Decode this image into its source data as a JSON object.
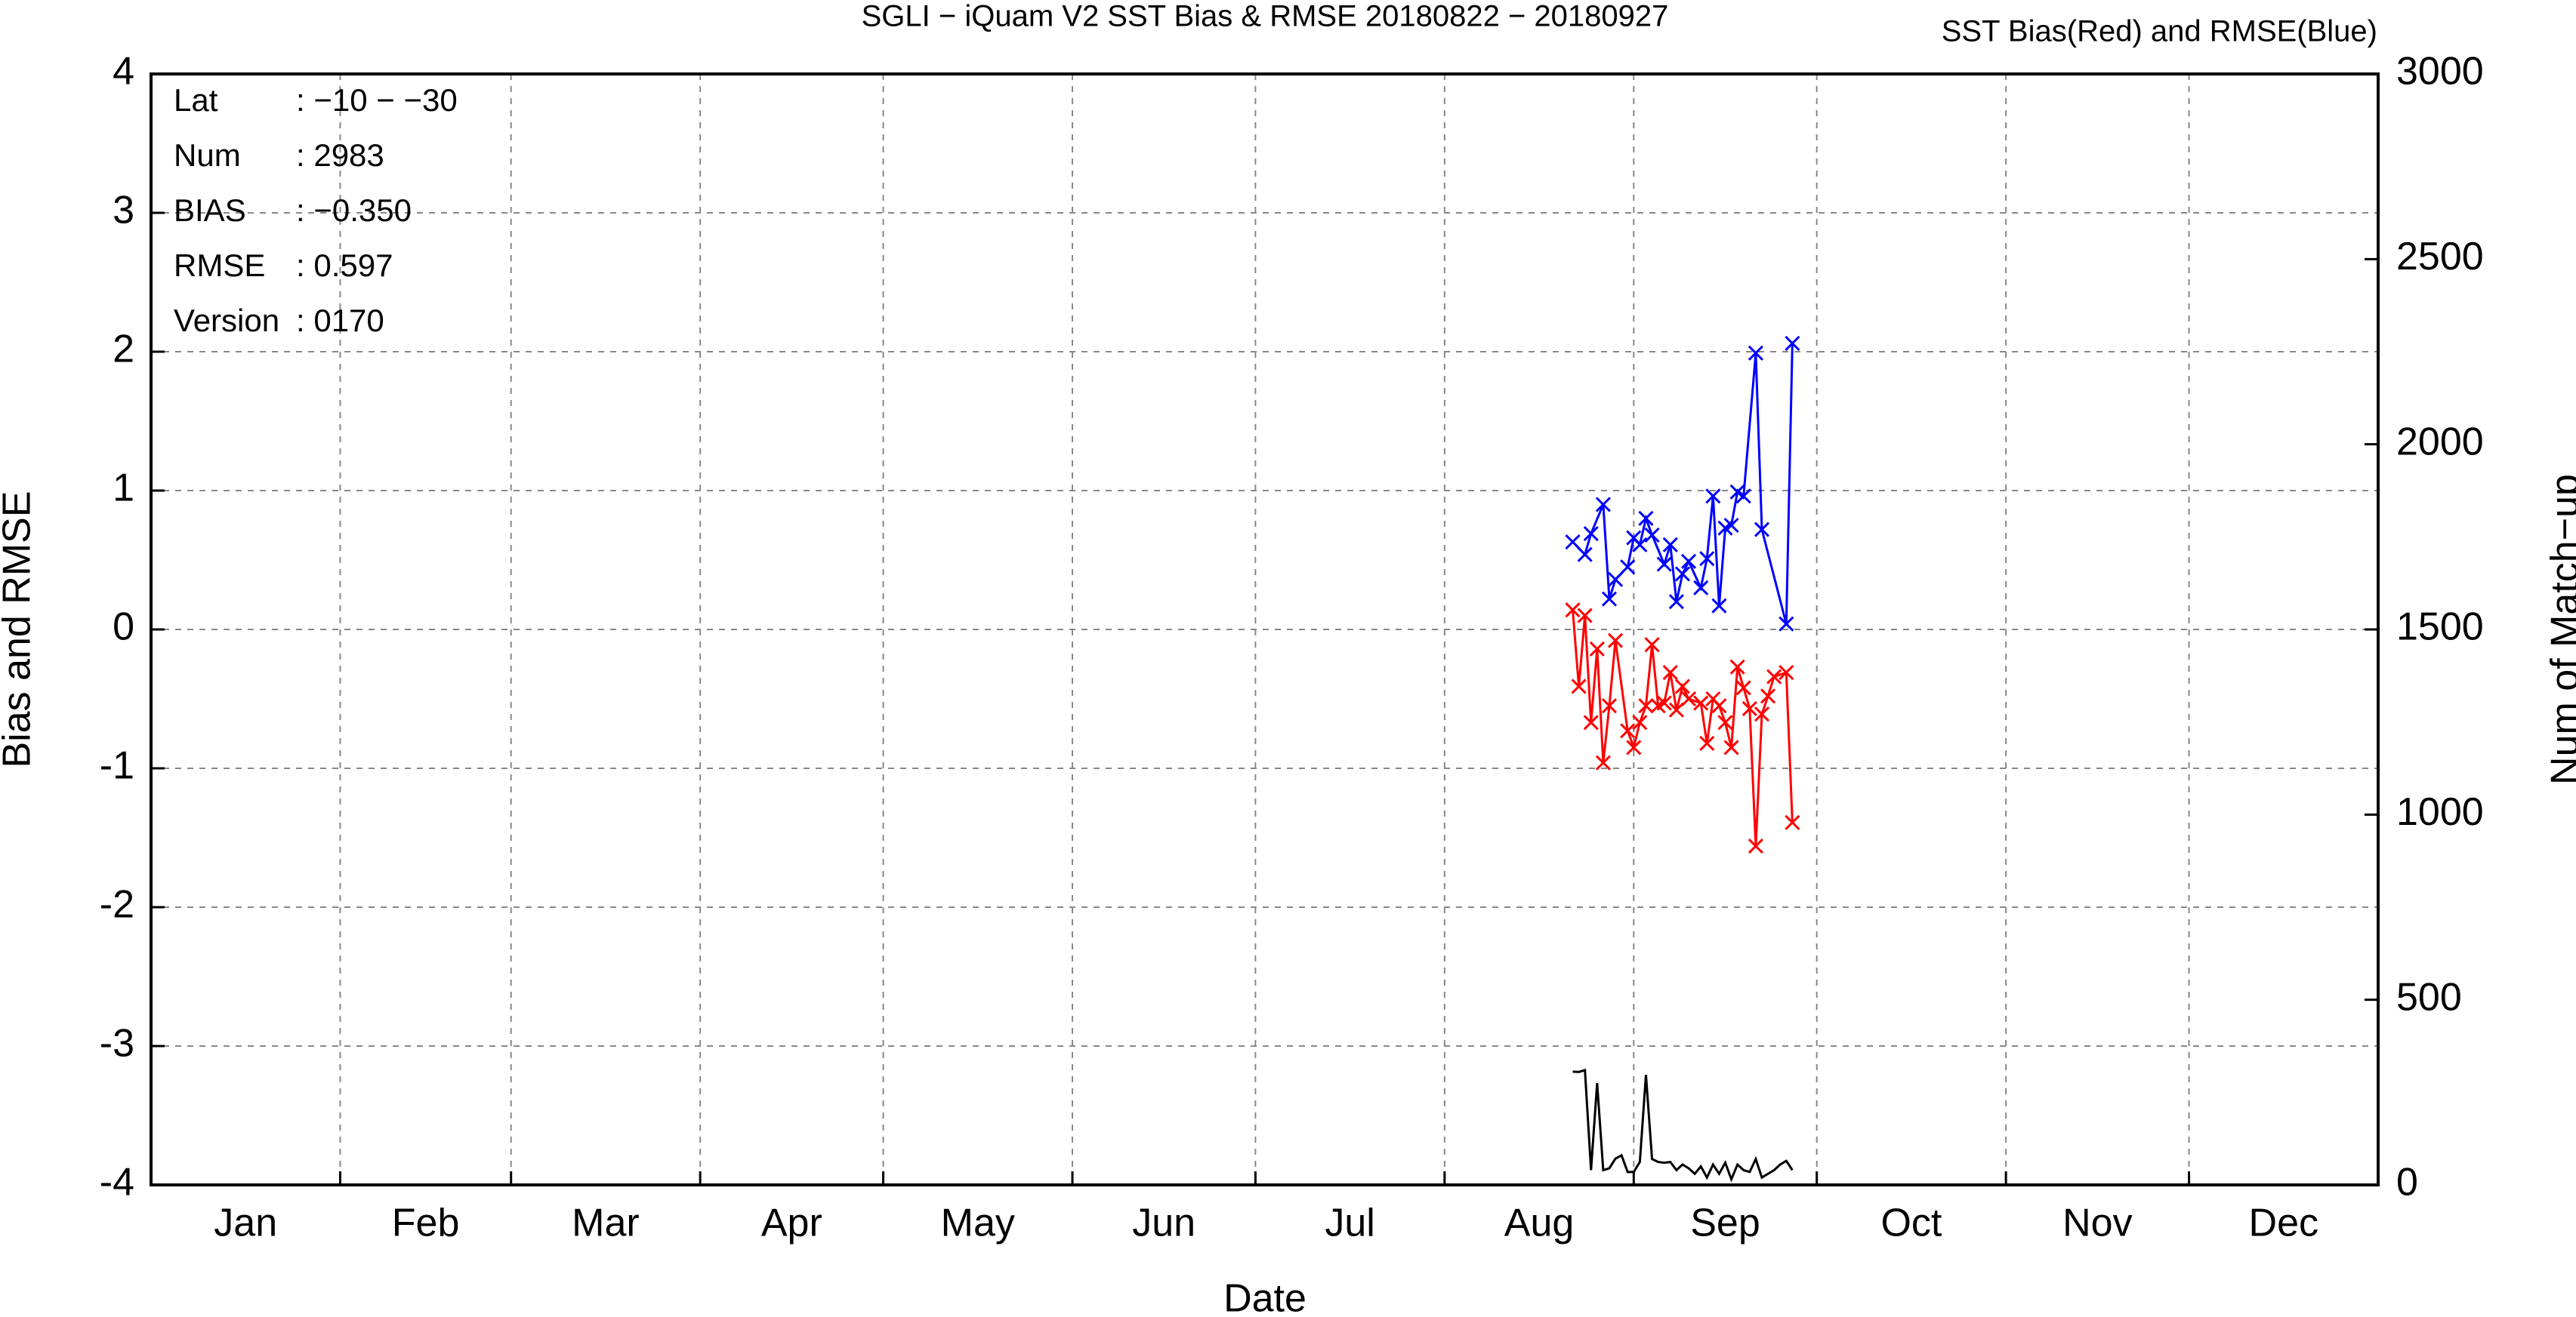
{
  "chart_data": {
    "type": "line",
    "title": "SGLI − iQuam V2 SST Bias & RMSE 20180822 − 20180927",
    "subtitle": "SST Bias(Red) and RMSE(Blue)",
    "xlabel": "Date",
    "ylabel": "Bias and RMSE",
    "y2label": "Num of Match−up",
    "xlim": [
      1,
      366
    ],
    "xticks": [
      {
        "value": 1,
        "label": "Jan"
      },
      {
        "value": 32,
        "label": "Feb"
      },
      {
        "value": 60,
        "label": "Mar"
      },
      {
        "value": 91,
        "label": "Apr"
      },
      {
        "value": 121,
        "label": "May"
      },
      {
        "value": 152,
        "label": "Jun"
      },
      {
        "value": 182,
        "label": "Jul"
      },
      {
        "value": 213,
        "label": "Aug"
      },
      {
        "value": 244,
        "label": "Sep"
      },
      {
        "value": 274,
        "label": "Oct"
      },
      {
        "value": 305,
        "label": "Nov"
      },
      {
        "value": 335,
        "label": "Dec"
      }
    ],
    "ylim": [
      -4,
      4
    ],
    "yticks": [
      -4,
      -3,
      -2,
      -1,
      0,
      1,
      2,
      3,
      4
    ],
    "y2lim": [
      0,
      3000
    ],
    "y2ticks": [
      0,
      500,
      1000,
      1500,
      2000,
      2500,
      3000
    ],
    "grid": true,
    "annotations": [
      {
        "label": "Lat",
        "value": ": −10 − −30"
      },
      {
        "label": "Num",
        "value": ": 2983"
      },
      {
        "label": "BIAS",
        "value": ": −0.350"
      },
      {
        "label": "RMSE",
        "value": ": 0.597"
      },
      {
        "label": "Version",
        "value": ": 0170"
      }
    ],
    "series": [
      {
        "color": "#0000ff",
        "marker": "x",
        "x": [
          234,
          236,
          237,
          239,
          240,
          241,
          243,
          244,
          245,
          246,
          247,
          249,
          250,
          251,
          252,
          253,
          255,
          256,
          257,
          258,
          259,
          260,
          261,
          262,
          264,
          265,
          269,
          270
        ],
        "values": [
          0.63,
          0.54,
          0.69,
          0.9,
          0.22,
          0.36,
          0.45,
          0.66,
          0.61,
          0.8,
          0.68,
          0.47,
          0.61,
          0.2,
          0.4,
          0.49,
          0.3,
          0.51,
          0.96,
          0.17,
          0.73,
          0.75,
          0.99,
          0.96,
          1.99,
          0.72,
          0.04,
          2.06
        ]
      },
      {
        "color": "#ff0000",
        "marker": "x",
        "x": [
          234,
          235,
          236,
          237,
          238,
          239,
          240,
          241,
          243,
          244,
          245,
          246,
          247,
          248,
          249,
          250,
          251,
          252,
          253,
          255,
          256,
          257,
          258,
          259,
          260,
          261,
          262,
          263,
          264,
          265,
          266,
          267,
          269,
          270
        ],
        "values": [
          0.14,
          -0.41,
          0.1,
          -0.67,
          -0.14,
          -0.96,
          -0.55,
          -0.08,
          -0.73,
          -0.85,
          -0.67,
          -0.55,
          -0.11,
          -0.55,
          -0.53,
          -0.31,
          -0.58,
          -0.41,
          -0.5,
          -0.53,
          -0.82,
          -0.5,
          -0.55,
          -0.67,
          -0.85,
          -0.27,
          -0.42,
          -0.57,
          -1.56,
          -0.61,
          -0.48,
          -0.34,
          -0.31,
          -1.39
        ]
      },
      {
        "color": "#000000",
        "axis": "y2",
        "x": [
          234,
          235,
          236,
          237,
          238,
          239,
          240,
          241,
          242,
          243,
          244,
          245,
          246,
          247,
          248,
          249,
          250,
          251,
          252,
          253,
          254,
          255,
          256,
          257,
          258,
          259,
          260,
          261,
          262,
          263,
          264,
          265,
          266,
          267,
          268,
          269,
          270
        ],
        "values": [
          306,
          305,
          310,
          40,
          275,
          40,
          45,
          71,
          80,
          35,
          35,
          62,
          297,
          70,
          62,
          60,
          62,
          40,
          55,
          45,
          30,
          50,
          20,
          55,
          30,
          60,
          15,
          55,
          40,
          35,
          70,
          20,
          30,
          40,
          55,
          65,
          40
        ]
      }
    ]
  }
}
